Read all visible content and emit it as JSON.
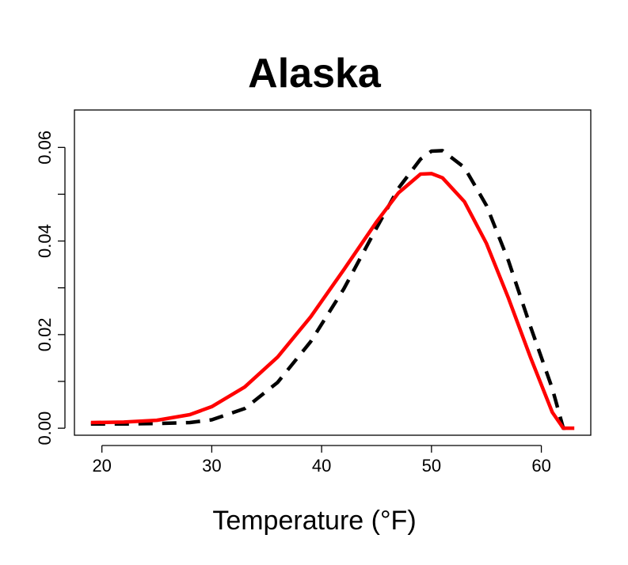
{
  "chart_data": {
    "type": "line",
    "title": "Alaska",
    "xlabel": "Temperature (°F)",
    "ylabel": "",
    "xlim": [
      17.5,
      64.5
    ],
    "ylim": [
      -0.0015,
      0.068
    ],
    "xticks": [
      20,
      30,
      40,
      50,
      60
    ],
    "yticks": [
      0.0,
      0.01,
      0.02,
      0.03,
      0.04,
      0.05,
      0.06
    ],
    "ytick_labels": [
      "0.00",
      "",
      "0.02",
      "",
      "0.04",
      "",
      "0.06"
    ],
    "legend": "none",
    "grid": false,
    "series": [
      {
        "color": "#ff0000",
        "style": "solid",
        "x": [
          19,
          22,
          25,
          28,
          30,
          33,
          36,
          39,
          42,
          45,
          47,
          49,
          50,
          51,
          53,
          55,
          57,
          59,
          61,
          62,
          63
        ],
        "y": [
          0.0012,
          0.0013,
          0.0017,
          0.0029,
          0.0046,
          0.0088,
          0.0152,
          0.0238,
          0.0338,
          0.0441,
          0.0503,
          0.0543,
          0.0544,
          0.0535,
          0.0484,
          0.0395,
          0.0278,
          0.0152,
          0.0034,
          0.0,
          0.0
        ]
      },
      {
        "color": "#000000",
        "style": "dashed",
        "x": [
          19,
          22,
          25,
          28,
          30,
          33,
          36,
          39,
          42,
          45,
          47,
          49,
          50,
          51,
          53,
          55,
          57,
          59,
          61,
          62,
          63
        ],
        "y": [
          0.0009,
          0.0009,
          0.001,
          0.0012,
          0.0018,
          0.0042,
          0.0098,
          0.0185,
          0.0297,
          0.0428,
          0.0513,
          0.0575,
          0.0592,
          0.0593,
          0.0557,
          0.0476,
          0.0358,
          0.0218,
          0.0085,
          0.0,
          0.0
        ]
      }
    ]
  }
}
